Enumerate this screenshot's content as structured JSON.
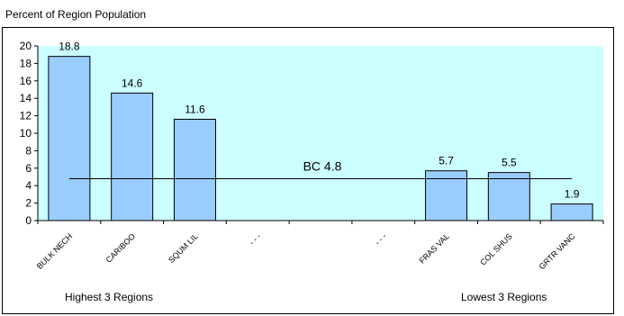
{
  "chart_data": {
    "type": "bar",
    "title": "",
    "ylabel": "Percent of Region Population",
    "ylim": [
      0,
      20
    ],
    "yticks": [
      0,
      2,
      4,
      6,
      8,
      10,
      12,
      14,
      16,
      18,
      20
    ],
    "categories": [
      "BULK NECH",
      "CARIBOO",
      "SQUM LIL",
      "- - -",
      "",
      "- - -",
      "FRAS VAL",
      "COL SHUS",
      "GRTR VANC"
    ],
    "values": [
      18.8,
      14.6,
      11.6,
      null,
      null,
      null,
      5.7,
      5.5,
      1.9
    ],
    "value_labels": [
      "18.8",
      "14.6",
      "11.6",
      "",
      "",
      "",
      "5.7",
      "5.5",
      "1.9"
    ],
    "reference_line": {
      "label": "BC 4.8",
      "value": 4.8
    },
    "group_labels": {
      "left": "Highest 3 Regions",
      "right": "Lowest 3 Regions"
    },
    "grid": false,
    "colors": {
      "plot_background": "#ccffff",
      "bar_fill": "#99ccff",
      "bar_stroke": "#000000"
    }
  }
}
